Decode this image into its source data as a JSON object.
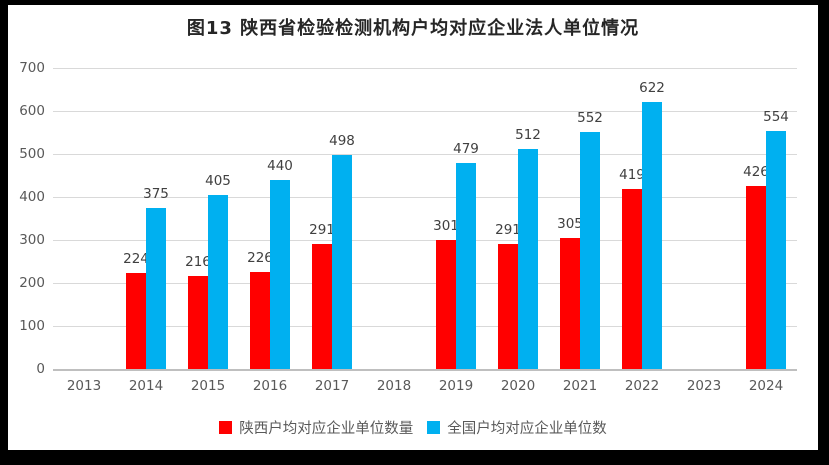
{
  "chart_data": {
    "type": "bar",
    "title": "图13  陕西省检验检测机构户均对应企业法人单位情况",
    "categories": [
      "2013",
      "2014",
      "2015",
      "2016",
      "2017",
      "2018",
      "2019",
      "2020",
      "2021",
      "2022",
      "2023",
      "2024"
    ],
    "series": [
      {
        "name": "陕西户均对应企业单位数量",
        "color": "#ff0000",
        "values": [
          null,
          224,
          216,
          226,
          291,
          null,
          301,
          291,
          305,
          419,
          null,
          426
        ]
      },
      {
        "name": "全国户均对应企业单位数",
        "color": "#00b0f0",
        "values": [
          null,
          375,
          405,
          440,
          498,
          null,
          479,
          512,
          552,
          622,
          null,
          554
        ]
      }
    ],
    "ylim": [
      0,
      700
    ],
    "ytick_step": 100,
    "yticks": [
      "0",
      "100",
      "200",
      "300",
      "400",
      "500",
      "600",
      "700"
    ],
    "grid": true,
    "data_labels": true,
    "legend_position": "bottom"
  },
  "style": {
    "frame_color": "#000000",
    "background": "#ffffff",
    "gridline_color": "#d9d9d9",
    "axis_text_color": "#595959",
    "label_text_color": "#404040",
    "title_color": "#262626"
  }
}
